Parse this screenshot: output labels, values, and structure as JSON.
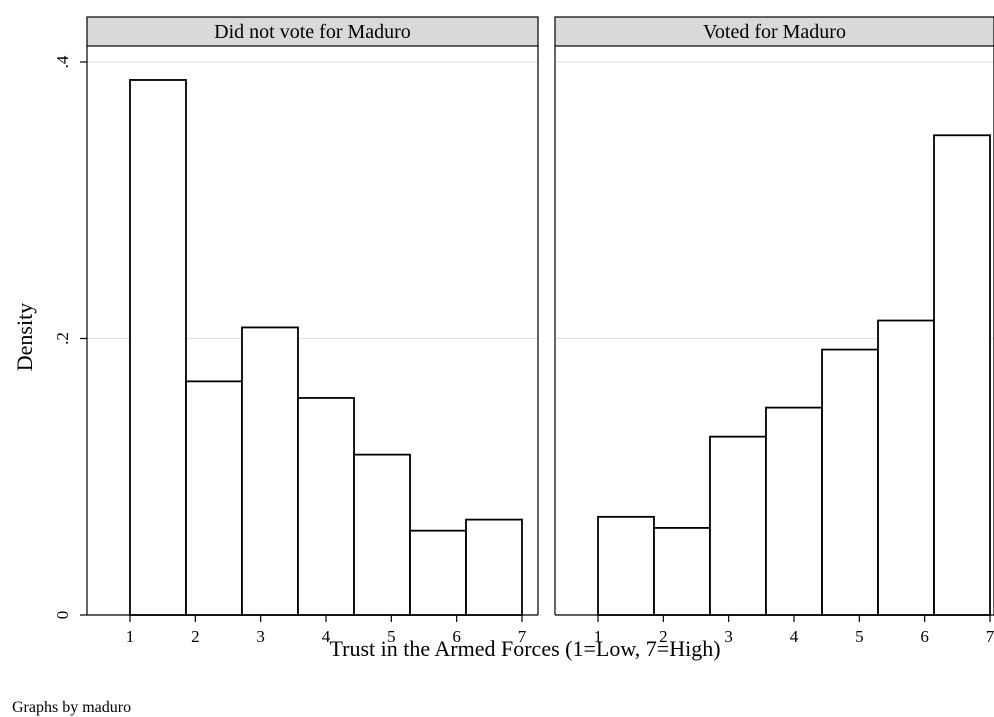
{
  "chart_data": {
    "type": "bar",
    "ylabel": "Density",
    "xlabel": "Trust in the Armed Forces (1=Low, 7=High)",
    "note": "Graphs by maduro",
    "ylim": [
      0,
      0.4
    ],
    "y_ticks": [
      {
        "value": 0,
        "label": "0"
      },
      {
        "value": 0.2,
        "label": ".2"
      },
      {
        "value": 0.4,
        "label": ".4"
      }
    ],
    "xlim": [
      0.5,
      7.0
    ],
    "x_ticks": [
      1,
      2,
      3,
      4,
      5,
      6,
      7
    ],
    "bin_edges": [
      1.0,
      1.857,
      2.714,
      3.571,
      4.429,
      5.286,
      6.143,
      7.0
    ],
    "grid": true,
    "panels": [
      {
        "title": "Did not vote for Maduro",
        "values": [
          0.387,
          0.169,
          0.208,
          0.157,
          0.116,
          0.061,
          0.069
        ]
      },
      {
        "title": "Voted for Maduro",
        "values": [
          0.071,
          0.063,
          0.129,
          0.15,
          0.192,
          0.213,
          0.347
        ]
      }
    ]
  }
}
